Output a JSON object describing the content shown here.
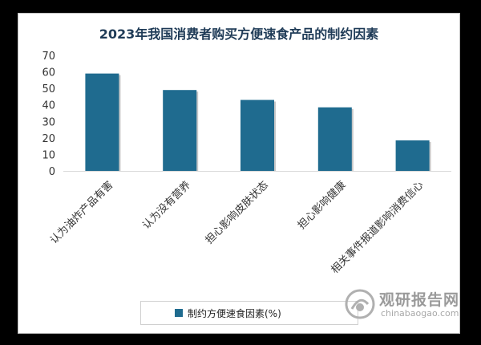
{
  "chart_data": {
    "type": "bar",
    "title": "2023年我国消费者购买方便速食产品的制约因素",
    "categories": [
      "认为油炸产品有害",
      "认为没有营养",
      "担心影响皮肤状态",
      "担心影响健康",
      "相关事件报道影响消费信心"
    ],
    "series": [
      {
        "name": "制约方便速食因素(%)",
        "values": [
          59,
          49,
          43,
          38.5,
          18.5
        ]
      }
    ],
    "yticks": [
      "0",
      "10",
      "20",
      "30",
      "40",
      "50",
      "60",
      "70"
    ],
    "ylim": [
      0,
      70
    ],
    "grid": false,
    "legend_position": "bottom",
    "bar_color": "#1f6b8f"
  },
  "watermark": {
    "cn": "观研报告网",
    "en": "chinabaogao.com"
  }
}
